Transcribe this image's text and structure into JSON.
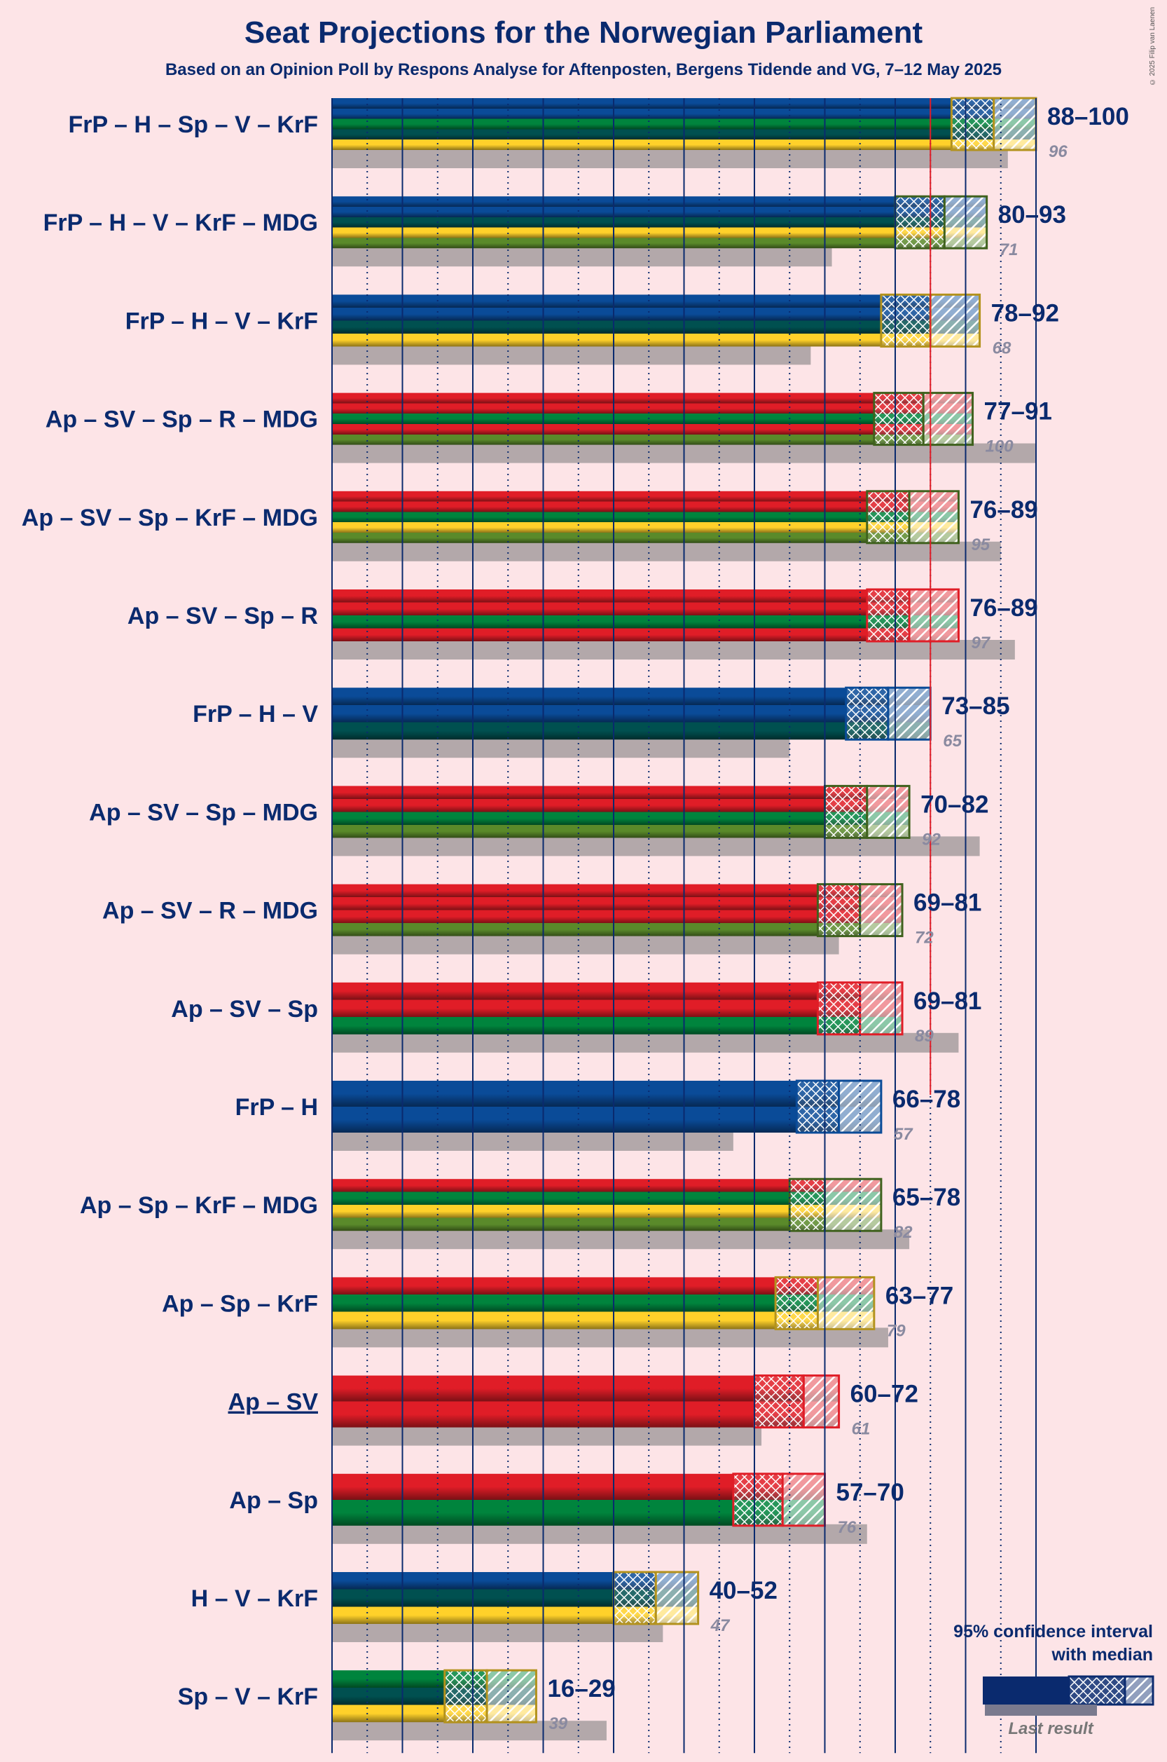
{
  "title": "Seat Projections for the Norwegian Parliament",
  "subtitle": "Based on an Opinion Poll by Respons Analyse for Aftenposten, Bergens Tidende and VG, 7–12 May 2025",
  "copyright": "© 2025 Filip van Laenen",
  "colors": {
    "Ap": "#e01d27",
    "SV": "#e01d27",
    "R": "#e01d27",
    "Sp": "#00843d",
    "MDG": "#5a8a2a",
    "FrP": "#0a4b98",
    "H": "#0a4b98",
    "V": "#005050",
    "KrF": "#ffd12a",
    "last_result": "#b3a8aa",
    "title": "#0a2a6e",
    "majority_line": "#e01d27"
  },
  "chart_data": {
    "type": "bar",
    "orientation": "horizontal",
    "title": "Seat Projections for the Norwegian Parliament",
    "xlim": [
      0,
      100
    ],
    "majority": 85,
    "gridline_step": 10,
    "coalitions": [
      {
        "label": "FrP – H – Sp – V – KrF",
        "parties": [
          "FrP",
          "H",
          "Sp",
          "V",
          "KrF"
        ],
        "low": 88,
        "median": 94,
        "high": 100,
        "range_label": "88–100",
        "last": 96,
        "last_label": "96",
        "underline": false
      },
      {
        "label": "FrP – H – V – KrF – MDG",
        "parties": [
          "FrP",
          "H",
          "V",
          "KrF",
          "MDG"
        ],
        "low": 80,
        "median": 87,
        "high": 93,
        "range_label": "80–93",
        "last": 71,
        "last_label": "71",
        "underline": false
      },
      {
        "label": "FrP – H – V – KrF",
        "parties": [
          "FrP",
          "H",
          "V",
          "KrF"
        ],
        "low": 78,
        "median": 85,
        "high": 92,
        "range_label": "78–92",
        "last": 68,
        "last_label": "68",
        "underline": false
      },
      {
        "label": "Ap – SV – Sp – R – MDG",
        "parties": [
          "Ap",
          "SV",
          "Sp",
          "R",
          "MDG"
        ],
        "low": 77,
        "median": 84,
        "high": 91,
        "range_label": "77–91",
        "last": 100,
        "last_label": "100",
        "underline": false
      },
      {
        "label": "Ap – SV – Sp – KrF – MDG",
        "parties": [
          "Ap",
          "SV",
          "Sp",
          "KrF",
          "MDG"
        ],
        "low": 76,
        "median": 82,
        "high": 89,
        "range_label": "76–89",
        "last": 95,
        "last_label": "95",
        "underline": false
      },
      {
        "label": "Ap – SV – Sp – R",
        "parties": [
          "Ap",
          "SV",
          "Sp",
          "R"
        ],
        "low": 76,
        "median": 82,
        "high": 89,
        "range_label": "76–89",
        "last": 97,
        "last_label": "97",
        "underline": false
      },
      {
        "label": "FrP – H – V",
        "parties": [
          "FrP",
          "H",
          "V"
        ],
        "low": 73,
        "median": 79,
        "high": 85,
        "range_label": "73–85",
        "last": 65,
        "last_label": "65",
        "underline": false
      },
      {
        "label": "Ap – SV – Sp – MDG",
        "parties": [
          "Ap",
          "SV",
          "Sp",
          "MDG"
        ],
        "low": 70,
        "median": 76,
        "high": 82,
        "range_label": "70–82",
        "last": 92,
        "last_label": "92",
        "underline": false
      },
      {
        "label": "Ap – SV – R – MDG",
        "parties": [
          "Ap",
          "SV",
          "R",
          "MDG"
        ],
        "low": 69,
        "median": 75,
        "high": 81,
        "range_label": "69–81",
        "last": 72,
        "last_label": "72",
        "underline": false
      },
      {
        "label": "Ap – SV – Sp",
        "parties": [
          "Ap",
          "SV",
          "Sp"
        ],
        "low": 69,
        "median": 75,
        "high": 81,
        "range_label": "69–81",
        "last": 89,
        "last_label": "89",
        "underline": false
      },
      {
        "label": "FrP – H",
        "parties": [
          "FrP",
          "H"
        ],
        "low": 66,
        "median": 72,
        "high": 78,
        "range_label": "66–78",
        "last": 57,
        "last_label": "57",
        "underline": false
      },
      {
        "label": "Ap – Sp – KrF – MDG",
        "parties": [
          "Ap",
          "Sp",
          "KrF",
          "MDG"
        ],
        "low": 65,
        "median": 70,
        "high": 78,
        "range_label": "65–78",
        "last": 82,
        "last_label": "82",
        "underline": false
      },
      {
        "label": "Ap – Sp – KrF",
        "parties": [
          "Ap",
          "Sp",
          "KrF"
        ],
        "low": 63,
        "median": 69,
        "high": 77,
        "range_label": "63–77",
        "last": 79,
        "last_label": "79",
        "underline": false
      },
      {
        "label": "Ap – SV",
        "parties": [
          "Ap",
          "SV"
        ],
        "low": 60,
        "median": 67,
        "high": 72,
        "range_label": "60–72",
        "last": 61,
        "last_label": "61",
        "underline": true
      },
      {
        "label": "Ap – Sp",
        "parties": [
          "Ap",
          "Sp"
        ],
        "low": 57,
        "median": 64,
        "high": 70,
        "range_label": "57–70",
        "last": 76,
        "last_label": "76",
        "underline": false
      },
      {
        "label": "H – V – KrF",
        "parties": [
          "H",
          "V",
          "KrF"
        ],
        "low": 40,
        "median": 46,
        "high": 52,
        "range_label": "40–52",
        "last": 47,
        "last_label": "47",
        "underline": false
      },
      {
        "label": "Sp – V – KrF",
        "parties": [
          "Sp",
          "V",
          "KrF"
        ],
        "low": 16,
        "median": 22,
        "high": 29,
        "range_label": "16–29",
        "last": 39,
        "last_label": "39",
        "underline": false
      }
    ]
  },
  "legend": {
    "title_line1": "95% confidence interval",
    "title_line2": "with median",
    "last_result": "Last result"
  }
}
